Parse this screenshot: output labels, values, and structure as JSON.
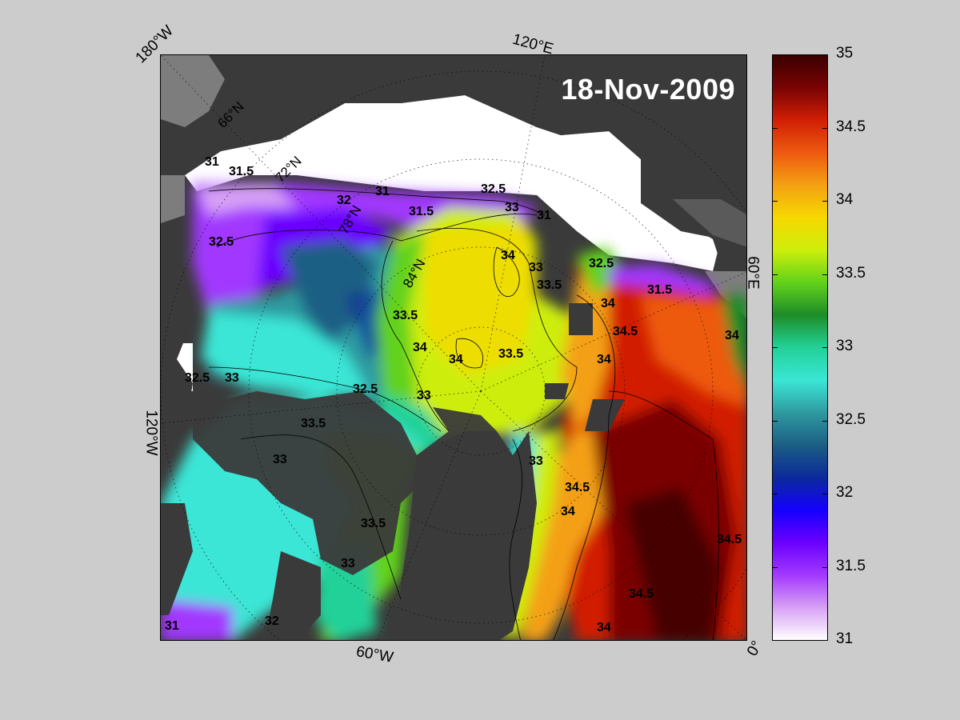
{
  "date_label": "18-Nov-2009",
  "edge_labels": {
    "w180": "180°W",
    "e120": "120°E",
    "e60": "60°E",
    "w120": "120°W",
    "w60": "60°W",
    "zero": "0°"
  },
  "grid_labels": {
    "n66": "66°N",
    "n72": "72°N",
    "n78": "78°N",
    "n84": "84°N"
  },
  "contour_labels": [
    "31",
    "31.5",
    "32",
    "32.5",
    "33",
    "33.5",
    "34",
    "34.5"
  ],
  "colorbar": {
    "min": 31,
    "max": 35,
    "ticks": [
      "35",
      "34.5",
      "34",
      "33.5",
      "33",
      "32.5",
      "32",
      "31.5",
      "31"
    ],
    "colors": [
      "#ffffff",
      "#d7a0f5",
      "#a238ff",
      "#6a00ff",
      "#1400ff",
      "#0b2a9a",
      "#1c5e84",
      "#2e9aa0",
      "#3be6d6",
      "#22d198",
      "#1e8c28",
      "#62d21b",
      "#cdee0a",
      "#f6d800",
      "#f4a012",
      "#ee5a10",
      "#d11f05",
      "#7a0303",
      "#3a0000"
    ]
  },
  "colors": {
    "land": "#3a3a3a",
    "land_light": "#7d7d7d",
    "ice": "#ffffff"
  }
}
